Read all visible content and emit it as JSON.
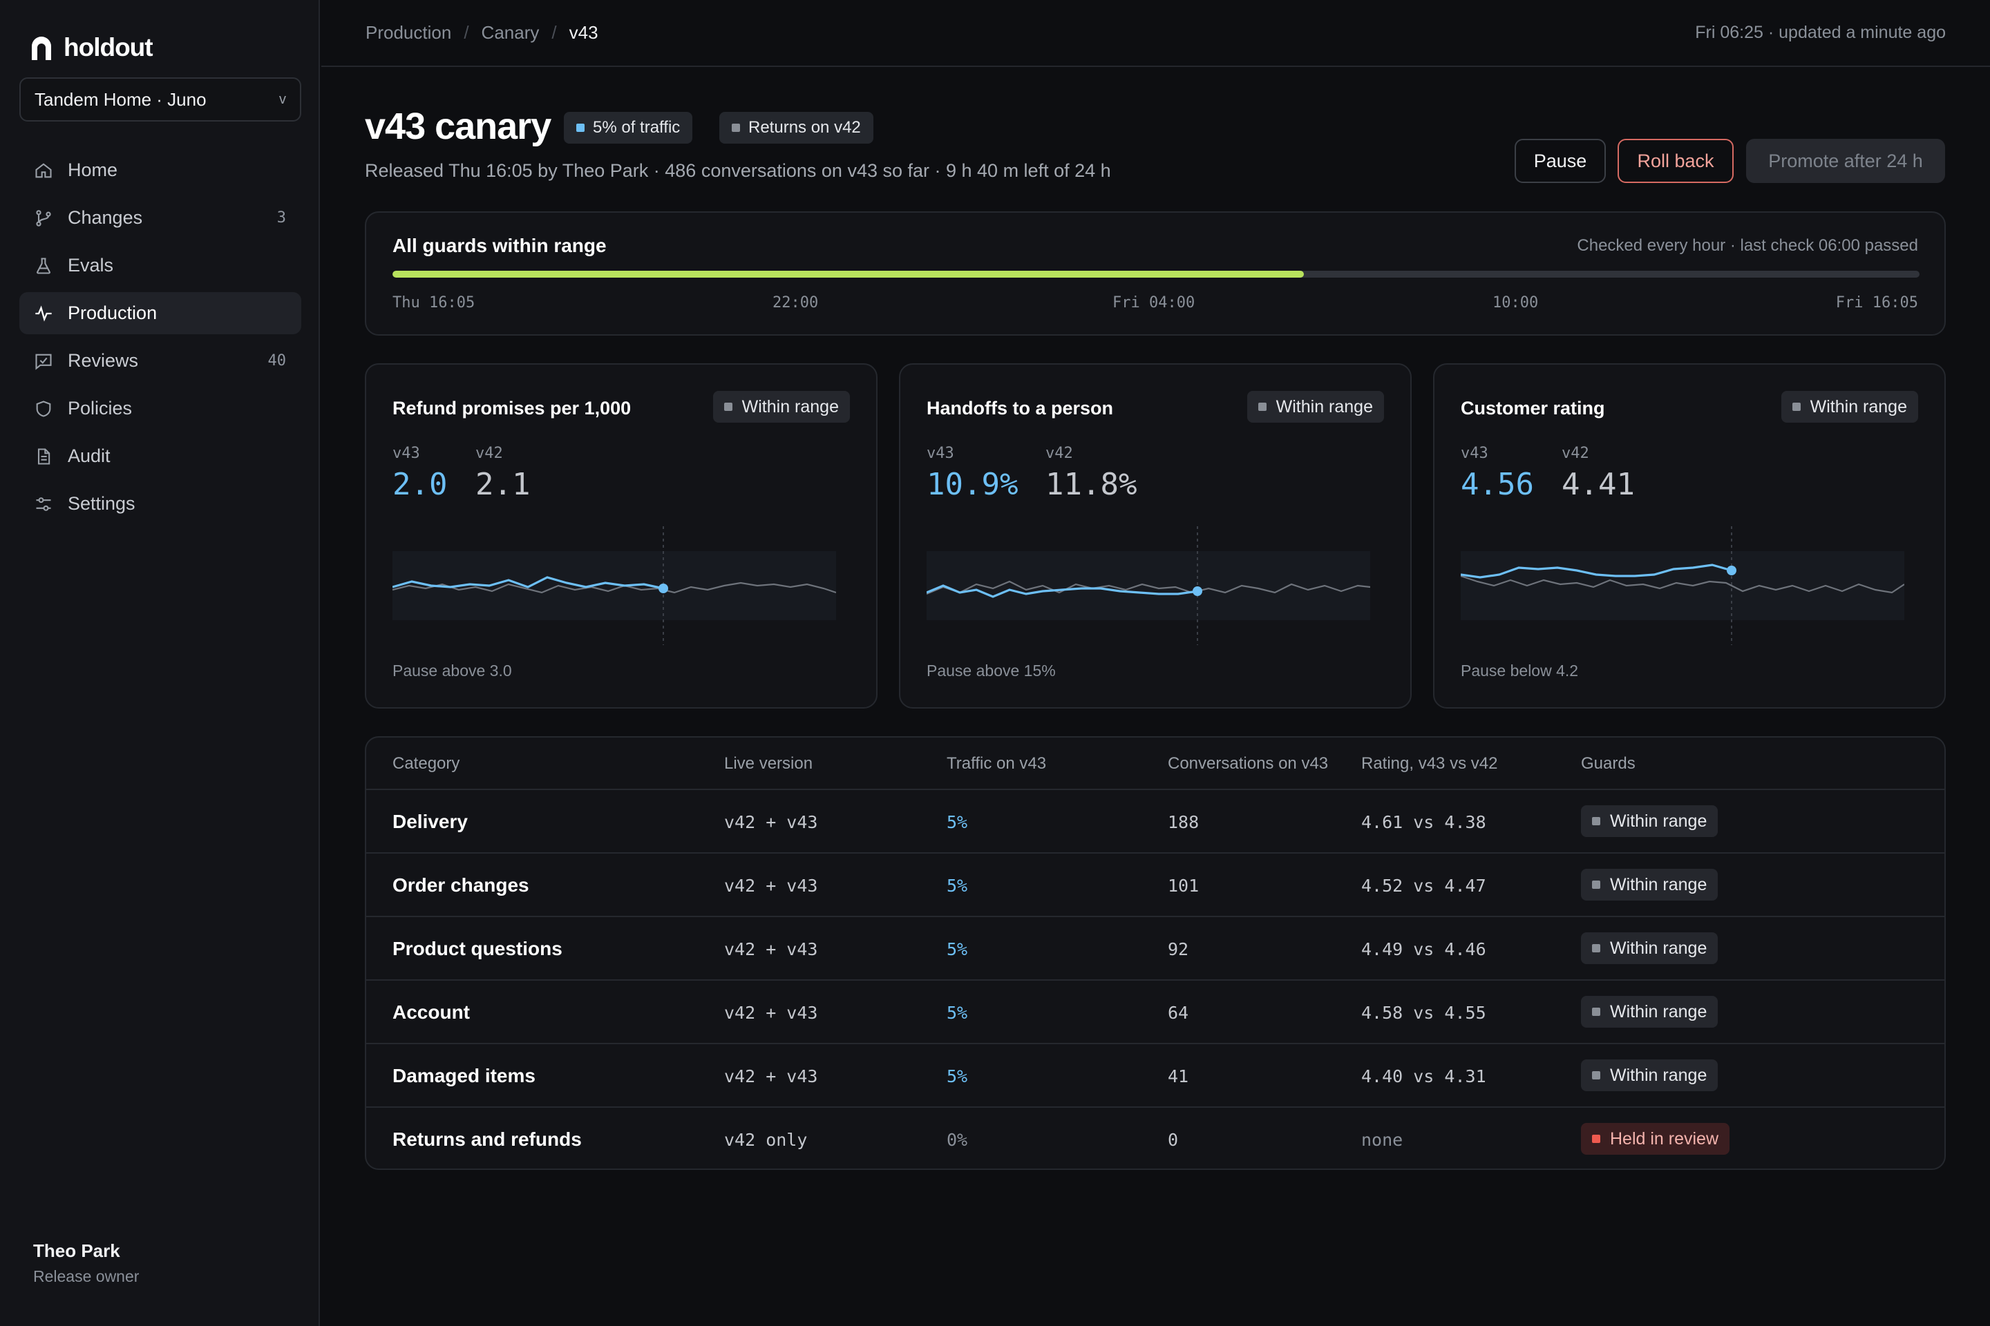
{
  "app": {
    "name": "holdout"
  },
  "workspace": {
    "label": "Tandem Home · Juno",
    "chevron": "v"
  },
  "nav": [
    {
      "label": "Home",
      "icon": "home-icon",
      "count": ""
    },
    {
      "label": "Changes",
      "icon": "branch-icon",
      "count": "3"
    },
    {
      "label": "Evals",
      "icon": "flask-icon",
      "count": ""
    },
    {
      "label": "Production",
      "icon": "pulse-icon",
      "count": "",
      "active": true
    },
    {
      "label": "Reviews",
      "icon": "review-icon",
      "count": "40"
    },
    {
      "label": "Policies",
      "icon": "shield-icon",
      "count": ""
    },
    {
      "label": "Audit",
      "icon": "document-icon",
      "count": ""
    },
    {
      "label": "Settings",
      "icon": "sliders-icon",
      "count": ""
    }
  ],
  "user": {
    "name": "Theo Park",
    "role": "Release owner"
  },
  "breadcrumb": {
    "items": [
      "Production",
      "Canary",
      "v43"
    ],
    "sep": "/"
  },
  "updated": "Fri 06:25 · updated a minute ago",
  "header": {
    "title": "v43 canary",
    "traffic_pill": "5% of traffic",
    "returns_pill": "Returns on v42",
    "subline": "Released Thu 16:05 by Theo Park · 486 conversations on v43 so far · 9 h 40 m left of 24 h"
  },
  "actions": {
    "pause": "Pause",
    "rollback": "Roll back",
    "promote": "Promote after 24 h"
  },
  "guards": {
    "title": "All guards within range",
    "note": "Checked every hour · last check 06:00 passed",
    "progress": 0.597,
    "ticks": [
      "Thu 16:05",
      "22:00",
      "Fri 04:00",
      "10:00",
      "Fri 16:05"
    ]
  },
  "metrics": [
    {
      "title": "Refund promises per 1,000",
      "status": "Within range",
      "new_label": "v43",
      "new_value": "2.0",
      "old_label": "v42",
      "old_value": "2.1",
      "foot": "Pause above 3.0"
    },
    {
      "title": "Handoffs to a person",
      "status": "Within range",
      "new_label": "v43",
      "new_value": "10.9%",
      "old_label": "v42",
      "old_value": "11.8%",
      "foot": "Pause above 15%"
    },
    {
      "title": "Customer rating",
      "status": "Within range",
      "new_label": "v43",
      "new_value": "4.56",
      "old_label": "v42",
      "old_value": "4.41",
      "foot": "Pause below 4.2"
    }
  ],
  "colors": {
    "accent_blue": "#6dbff5",
    "progress_green": "#b8e25d",
    "danger": "#ef5a4f"
  },
  "table": {
    "headers": [
      "Category",
      "Live version",
      "Traffic on v43",
      "Conversations on v43",
      "Rating, v43 vs v42",
      "Guards"
    ],
    "rows": [
      {
        "category": "Delivery",
        "version": "v42 + v43",
        "traffic": "5%",
        "conversations": "188",
        "rating": "4.61 vs 4.38",
        "guard": "Within range"
      },
      {
        "category": "Order changes",
        "version": "v42 + v43",
        "traffic": "5%",
        "conversations": "101",
        "rating": "4.52 vs 4.47",
        "guard": "Within range"
      },
      {
        "category": "Product questions",
        "version": "v42 + v43",
        "traffic": "5%",
        "conversations": "92",
        "rating": "4.49 vs 4.46",
        "guard": "Within range"
      },
      {
        "category": "Account",
        "version": "v42 + v43",
        "traffic": "5%",
        "conversations": "64",
        "rating": "4.58 vs 4.55",
        "guard": "Within range"
      },
      {
        "category": "Damaged items",
        "version": "v42 + v43",
        "traffic": "5%",
        "conversations": "41",
        "rating": "4.40 vs 4.31",
        "guard": "Within range"
      },
      {
        "category": "Returns and refunds",
        "version": "v42 only",
        "traffic": "0%",
        "conversations": "0",
        "rating": "none",
        "guard": "Held in review",
        "held": true
      }
    ]
  }
}
